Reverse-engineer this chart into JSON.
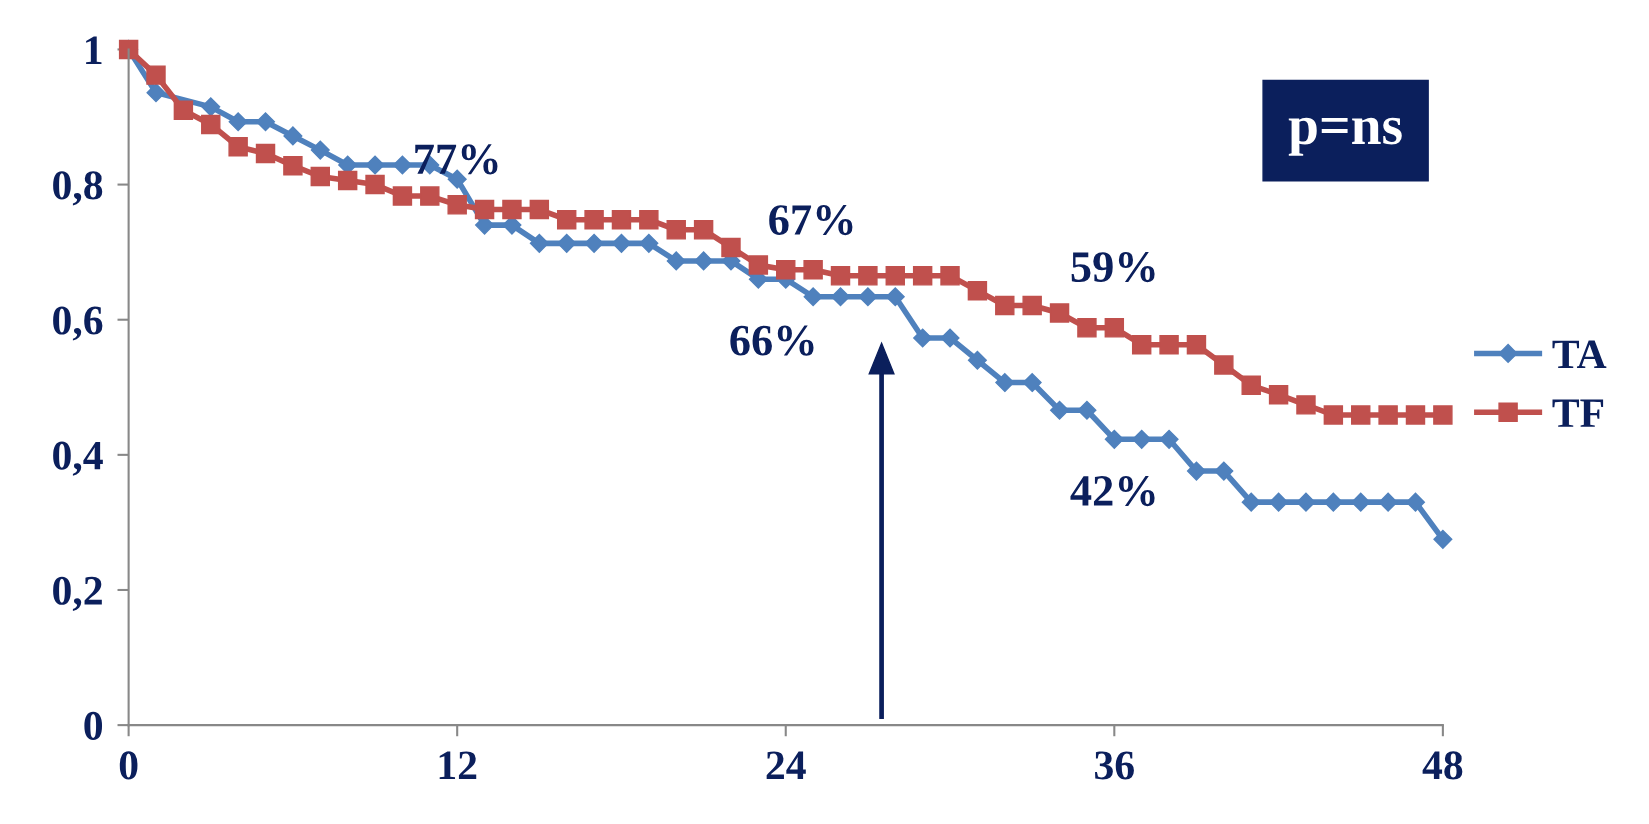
{
  "chart_data": {
    "type": "line",
    "x": [
      0,
      1,
      2,
      3,
      4,
      5,
      6,
      7,
      8,
      9,
      10,
      11,
      12,
      13,
      14,
      15,
      16,
      17,
      18,
      19,
      20,
      21,
      22,
      23,
      24,
      25,
      26,
      27,
      28,
      29,
      30,
      31,
      32,
      33,
      34,
      35,
      36,
      37,
      38,
      39,
      40,
      41,
      42,
      43,
      44,
      45,
      46,
      47,
      48
    ],
    "series": [
      {
        "name": "TA",
        "color": "#4f81bd",
        "marker": "diamond",
        "values": [
          1.0,
          0.936,
          null,
          0.915,
          0.893,
          0.893,
          0.872,
          0.851,
          0.829,
          0.829,
          0.829,
          0.829,
          0.808,
          0.74,
          0.74,
          0.713,
          0.713,
          0.713,
          0.713,
          0.713,
          0.687,
          0.687,
          0.687,
          0.66,
          0.66,
          0.634,
          0.634,
          0.634,
          0.634,
          0.573,
          0.573,
          0.54,
          0.507,
          0.507,
          0.466,
          0.466,
          0.423,
          0.423,
          0.423,
          0.376,
          0.376,
          0.33,
          0.33,
          0.33,
          0.33,
          0.33,
          0.33,
          0.33,
          0.275
        ]
      },
      {
        "name": "TF",
        "color": "#c0504d",
        "marker": "square",
        "values": [
          1.0,
          0.962,
          0.91,
          0.889,
          0.856,
          0.846,
          0.828,
          0.812,
          0.806,
          0.8,
          0.783,
          0.783,
          0.77,
          0.763,
          0.763,
          0.763,
          0.748,
          0.748,
          0.748,
          0.748,
          0.733,
          0.733,
          0.707,
          0.681,
          0.674,
          0.674,
          0.665,
          0.665,
          0.665,
          0.665,
          0.665,
          0.643,
          0.621,
          0.621,
          0.61,
          0.588,
          0.588,
          0.563,
          0.563,
          0.563,
          0.533,
          0.503,
          0.489,
          0.474,
          0.459,
          0.459,
          0.459,
          0.459,
          0.459
        ]
      }
    ],
    "xlim": [
      0,
      48
    ],
    "xticks": [
      0,
      12,
      24,
      36,
      48
    ],
    "ylim": [
      0,
      1
    ],
    "yticks": [
      {
        "value": 0,
        "label": "0"
      },
      {
        "value": 0.2,
        "label": "0,2"
      },
      {
        "value": 0.4,
        "label": "0,4"
      },
      {
        "value": 0.6,
        "label": "0,6"
      },
      {
        "value": 0.8,
        "label": "0,8"
      },
      {
        "value": 1,
        "label": "1"
      }
    ],
    "annotations": [
      {
        "text": "77%",
        "x": 12,
        "y": 0.77
      },
      {
        "text": "67%",
        "x": 24,
        "y": 0.674
      },
      {
        "text": "66%",
        "x": 24,
        "y": 0.66
      },
      {
        "text": "59%",
        "x": 36,
        "y": 0.588
      },
      {
        "text": "42%",
        "x": 36,
        "y": 0.423
      },
      "p=ns"
    ],
    "grid": false,
    "legend": "right",
    "line_style": "solid"
  }
}
